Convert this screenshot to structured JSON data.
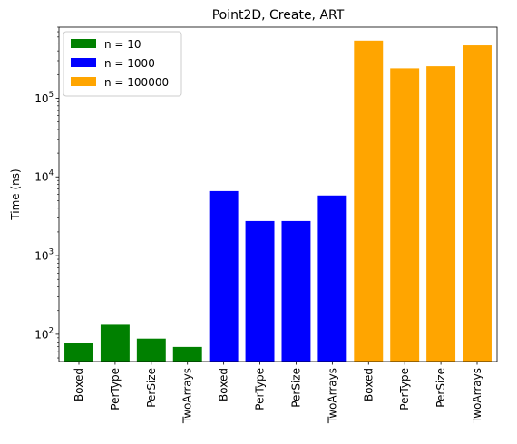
{
  "chart_data": {
    "type": "bar",
    "title": "Point2D, Create, ART",
    "xlabel": "",
    "ylabel": "Time (ns)",
    "yscale": "log",
    "ylim": [
      45,
      800000
    ],
    "yticks": [
      {
        "value": 100,
        "base": "10",
        "exp": "2"
      },
      {
        "value": 1000,
        "base": "10",
        "exp": "3"
      },
      {
        "value": 10000,
        "base": "10",
        "exp": "4"
      },
      {
        "value": 100000,
        "base": "10",
        "exp": "5"
      }
    ],
    "grid": false,
    "legend_position": "top-left",
    "bars": [
      {
        "label": "Boxed",
        "value": 77,
        "series": 0
      },
      {
        "label": "PerType",
        "value": 132,
        "series": 0
      },
      {
        "label": "PerSize",
        "value": 88,
        "series": 0
      },
      {
        "label": "TwoArrays",
        "value": 69,
        "series": 0
      },
      {
        "label": "Boxed",
        "value": 6600,
        "series": 1
      },
      {
        "label": "PerType",
        "value": 2750,
        "series": 1
      },
      {
        "label": "PerSize",
        "value": 2750,
        "series": 1
      },
      {
        "label": "TwoArrays",
        "value": 5800,
        "series": 1
      },
      {
        "label": "Boxed",
        "value": 540000,
        "series": 2
      },
      {
        "label": "PerType",
        "value": 240000,
        "series": 2
      },
      {
        "label": "PerSize",
        "value": 255000,
        "series": 2
      },
      {
        "label": "TwoArrays",
        "value": 470000,
        "series": 2
      }
    ],
    "series": [
      {
        "name": "n = 10",
        "color": "#008000"
      },
      {
        "name": "n = 1000",
        "color": "#0000ff"
      },
      {
        "name": "n = 100000",
        "color": "#ffa500"
      }
    ]
  }
}
